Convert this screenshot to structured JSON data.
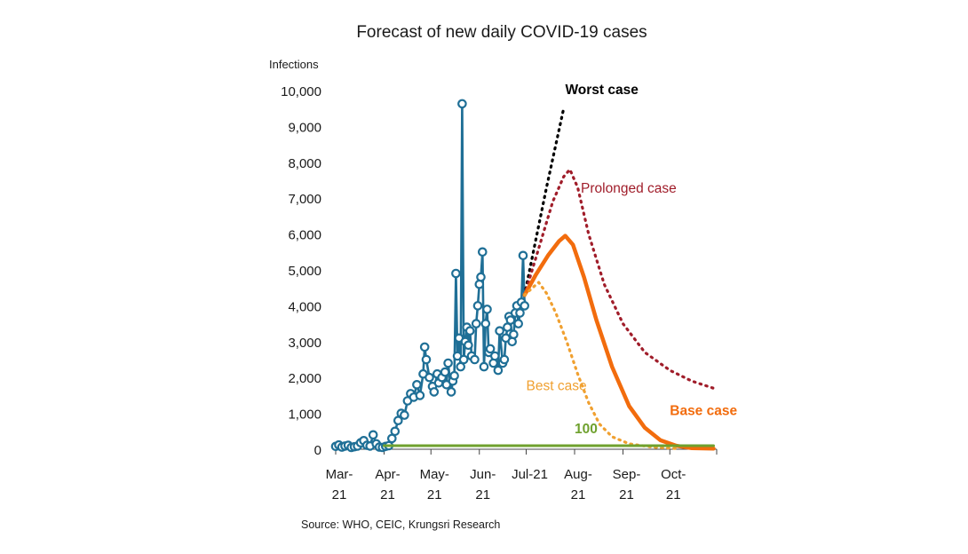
{
  "chart_data": {
    "type": "line",
    "title": "Forecast of new daily COVID-19 cases",
    "ylabel": "Infections",
    "source": "Source: WHO, CEIC, Krungsri Research",
    "ylim": [
      0,
      10000
    ],
    "yticks": [
      0,
      1000,
      2000,
      3000,
      4000,
      5000,
      6000,
      7000,
      8000,
      9000,
      10000
    ],
    "ytick_labels": [
      "0",
      "1,000",
      "2,000",
      "3,000",
      "4,000",
      "5,000",
      "6,000",
      "7,000",
      "8,000",
      "9,000",
      "10,000"
    ],
    "x_ticks": [
      {
        "date": "2021-03-01",
        "line1": "Mar-",
        "line2": "21"
      },
      {
        "date": "2021-04-01",
        "line1": "Apr-",
        "line2": "21"
      },
      {
        "date": "2021-05-01",
        "line1": "May-",
        "line2": "21"
      },
      {
        "date": "2021-06-01",
        "line1": "Jun-",
        "line2": "21"
      },
      {
        "date": "2021-07-01",
        "line1": "Jul-21",
        "line2": ""
      },
      {
        "date": "2021-08-01",
        "line1": "Aug-",
        "line2": "21"
      },
      {
        "date": "2021-09-01",
        "line1": "Sep-",
        "line2": "21"
      },
      {
        "date": "2021-10-01",
        "line1": "Oct-",
        "line2": "21"
      }
    ],
    "xlim": [
      "2021-03-01",
      "2021-10-31"
    ],
    "grid": false,
    "series": [
      {
        "name": "",
        "style": "line-markers",
        "color": "#1f6f96",
        "points": [
          [
            "2021-03-01",
            80
          ],
          [
            "2021-03-03",
            120
          ],
          [
            "2021-03-05",
            60
          ],
          [
            "2021-03-07",
            90
          ],
          [
            "2021-03-09",
            110
          ],
          [
            "2021-03-11",
            50
          ],
          [
            "2021-03-13",
            70
          ],
          [
            "2021-03-15",
            90
          ],
          [
            "2021-03-17",
            180
          ],
          [
            "2021-03-19",
            240
          ],
          [
            "2021-03-21",
            110
          ],
          [
            "2021-03-23",
            90
          ],
          [
            "2021-03-25",
            400
          ],
          [
            "2021-03-27",
            150
          ],
          [
            "2021-03-29",
            60
          ],
          [
            "2021-03-31",
            50
          ],
          [
            "2021-04-02",
            80
          ],
          [
            "2021-04-04",
            100
          ],
          [
            "2021-04-06",
            300
          ],
          [
            "2021-04-08",
            500
          ],
          [
            "2021-04-10",
            800
          ],
          [
            "2021-04-12",
            1000
          ],
          [
            "2021-04-14",
            950
          ],
          [
            "2021-04-16",
            1350
          ],
          [
            "2021-04-18",
            1550
          ],
          [
            "2021-04-20",
            1450
          ],
          [
            "2021-04-22",
            1800
          ],
          [
            "2021-04-24",
            1500
          ],
          [
            "2021-04-26",
            2100
          ],
          [
            "2021-04-27",
            2850
          ],
          [
            "2021-04-28",
            2500
          ],
          [
            "2021-04-30",
            2000
          ],
          [
            "2021-05-02",
            1750
          ],
          [
            "2021-05-03",
            1600
          ],
          [
            "2021-05-05",
            2100
          ],
          [
            "2021-05-06",
            1850
          ],
          [
            "2021-05-08",
            2000
          ],
          [
            "2021-05-10",
            2150
          ],
          [
            "2021-05-11",
            1800
          ],
          [
            "2021-05-12",
            2400
          ],
          [
            "2021-05-14",
            1600
          ],
          [
            "2021-05-15",
            1900
          ],
          [
            "2021-05-16",
            2050
          ],
          [
            "2021-05-17",
            4900
          ],
          [
            "2021-05-18",
            2600
          ],
          [
            "2021-05-19",
            3100
          ],
          [
            "2021-05-20",
            2300
          ],
          [
            "2021-05-21",
            9630
          ],
          [
            "2021-05-22",
            2500
          ],
          [
            "2021-05-23",
            3000
          ],
          [
            "2021-05-24",
            3400
          ],
          [
            "2021-05-25",
            2900
          ],
          [
            "2021-05-26",
            3300
          ],
          [
            "2021-05-27",
            2600
          ],
          [
            "2021-05-29",
            2500
          ],
          [
            "2021-05-30",
            3500
          ],
          [
            "2021-05-31",
            4000
          ],
          [
            "2021-06-01",
            4600
          ],
          [
            "2021-06-02",
            4800
          ],
          [
            "2021-06-03",
            5500
          ],
          [
            "2021-06-04",
            2300
          ],
          [
            "2021-06-05",
            3500
          ],
          [
            "2021-06-06",
            3900
          ],
          [
            "2021-06-07",
            2700
          ],
          [
            "2021-06-08",
            2800
          ],
          [
            "2021-06-10",
            2400
          ],
          [
            "2021-06-11",
            2600
          ],
          [
            "2021-06-13",
            2200
          ],
          [
            "2021-06-14",
            3300
          ],
          [
            "2021-06-16",
            2400
          ],
          [
            "2021-06-17",
            2500
          ],
          [
            "2021-06-18",
            3100
          ],
          [
            "2021-06-19",
            3400
          ],
          [
            "2021-06-20",
            3700
          ],
          [
            "2021-06-21",
            3600
          ],
          [
            "2021-06-22",
            3000
          ],
          [
            "2021-06-23",
            3200
          ],
          [
            "2021-06-24",
            3800
          ],
          [
            "2021-06-25",
            4000
          ],
          [
            "2021-06-26",
            3500
          ],
          [
            "2021-06-27",
            3800
          ],
          [
            "2021-06-28",
            4100
          ],
          [
            "2021-06-29",
            5400
          ],
          [
            "2021-06-30",
            4000
          ]
        ]
      },
      {
        "name": "Worst case",
        "style": "dotted",
        "color": "#000000",
        "points": [
          [
            "2021-06-30",
            4300
          ],
          [
            "2021-07-07",
            5800
          ],
          [
            "2021-07-14",
            7300
          ],
          [
            "2021-07-21",
            8700
          ],
          [
            "2021-07-25",
            9500
          ]
        ]
      },
      {
        "name": "Prolonged case",
        "style": "dotted",
        "color": "#a01d2a",
        "points": [
          [
            "2021-06-30",
            4300
          ],
          [
            "2021-07-09",
            5600
          ],
          [
            "2021-07-18",
            6900
          ],
          [
            "2021-07-25",
            7600
          ],
          [
            "2021-07-29",
            7800
          ],
          [
            "2021-08-03",
            7300
          ],
          [
            "2021-08-10",
            6000
          ],
          [
            "2021-08-20",
            4600
          ],
          [
            "2021-09-01",
            3500
          ],
          [
            "2021-09-15",
            2700
          ],
          [
            "2021-10-01",
            2200
          ],
          [
            "2021-10-15",
            1900
          ],
          [
            "2021-10-29",
            1700
          ]
        ]
      },
      {
        "name": "Base case",
        "style": "solid",
        "color": "#f26c0d",
        "points": [
          [
            "2021-06-30",
            4300
          ],
          [
            "2021-07-07",
            4850
          ],
          [
            "2021-07-15",
            5400
          ],
          [
            "2021-07-22",
            5800
          ],
          [
            "2021-07-26",
            5950
          ],
          [
            "2021-07-31",
            5700
          ],
          [
            "2021-08-07",
            4800
          ],
          [
            "2021-08-15",
            3600
          ],
          [
            "2021-08-25",
            2300
          ],
          [
            "2021-09-05",
            1200
          ],
          [
            "2021-09-15",
            600
          ],
          [
            "2021-09-25",
            250
          ],
          [
            "2021-10-05",
            100
          ],
          [
            "2021-10-15",
            30
          ],
          [
            "2021-10-29",
            20
          ]
        ]
      },
      {
        "name": "Best case",
        "style": "dotted",
        "color": "#f0a030",
        "points": [
          [
            "2021-06-30",
            4300
          ],
          [
            "2021-07-05",
            4500
          ],
          [
            "2021-07-09",
            4650
          ],
          [
            "2021-07-14",
            4350
          ],
          [
            "2021-07-20",
            3800
          ],
          [
            "2021-07-27",
            3000
          ],
          [
            "2021-08-03",
            2100
          ],
          [
            "2021-08-10",
            1300
          ],
          [
            "2021-08-17",
            700
          ],
          [
            "2021-08-25",
            350
          ],
          [
            "2021-09-05",
            150
          ],
          [
            "2021-09-20",
            60
          ],
          [
            "2021-10-05",
            20
          ]
        ]
      },
      {
        "name": "100",
        "style": "solid",
        "color": "#6fa12e",
        "points": [
          [
            "2021-04-01",
            100
          ],
          [
            "2021-10-29",
            100
          ]
        ]
      }
    ],
    "annotations": [
      {
        "text": "Worst case",
        "color": "#000000",
        "bold": true,
        "at": [
          "2021-07-26",
          9900
        ]
      },
      {
        "text": "Prolonged case",
        "color": "#a01d2a",
        "bold": false,
        "at": [
          "2021-08-05",
          7150
        ]
      },
      {
        "text": "Best case",
        "color": "#f0a030",
        "bold": false,
        "at": [
          "2021-07-01",
          1650
        ]
      },
      {
        "text": "Base case",
        "color": "#f26c0d",
        "bold": true,
        "at": [
          "2021-10-01",
          950
        ]
      },
      {
        "text": "100",
        "color": "#6fa12e",
        "bold": true,
        "at": [
          "2021-08-01",
          450
        ]
      }
    ]
  }
}
